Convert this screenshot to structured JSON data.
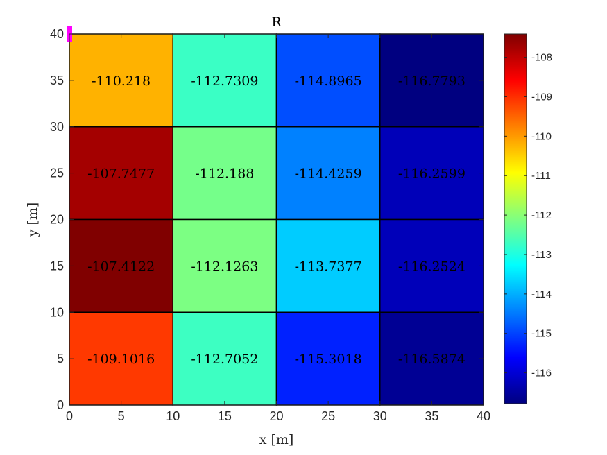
{
  "chart_data": {
    "type": "heatmap",
    "title": "R",
    "xlabel": "x [m]",
    "ylabel": "y [m]",
    "xlim": [
      0,
      40
    ],
    "ylim": [
      0,
      40
    ],
    "xticks": [
      0,
      5,
      10,
      15,
      20,
      25,
      30,
      35,
      40
    ],
    "yticks": [
      0,
      5,
      10,
      15,
      20,
      25,
      30,
      35,
      40
    ],
    "x_edges": [
      0,
      10,
      20,
      30,
      40
    ],
    "y_edges": [
      0,
      10,
      20,
      30,
      40
    ],
    "colormap": "jet",
    "clim": [
      -116.78,
      -107.41
    ],
    "colorbar_ticks": [
      -108,
      -109,
      -110,
      -111,
      -112,
      -113,
      -114,
      -115,
      -116
    ],
    "cells": [
      {
        "x": [
          0,
          10
        ],
        "y": [
          30,
          40
        ],
        "value": -110.218,
        "label": "-110.218"
      },
      {
        "x": [
          10,
          20
        ],
        "y": [
          30,
          40
        ],
        "value": -112.7309,
        "label": "-112.7309"
      },
      {
        "x": [
          20,
          30
        ],
        "y": [
          30,
          40
        ],
        "value": -114.8965,
        "label": "-114.8965"
      },
      {
        "x": [
          30,
          40
        ],
        "y": [
          30,
          40
        ],
        "value": -116.7793,
        "label": "-116.7793"
      },
      {
        "x": [
          0,
          10
        ],
        "y": [
          20,
          30
        ],
        "value": -107.7477,
        "label": "-107.7477"
      },
      {
        "x": [
          10,
          20
        ],
        "y": [
          20,
          30
        ],
        "value": -112.188,
        "label": "-112.188"
      },
      {
        "x": [
          20,
          30
        ],
        "y": [
          20,
          30
        ],
        "value": -114.4259,
        "label": "-114.4259"
      },
      {
        "x": [
          30,
          40
        ],
        "y": [
          20,
          30
        ],
        "value": -116.2599,
        "label": "-116.2599"
      },
      {
        "x": [
          0,
          10
        ],
        "y": [
          10,
          20
        ],
        "value": -107.4122,
        "label": "-107.4122"
      },
      {
        "x": [
          10,
          20
        ],
        "y": [
          10,
          20
        ],
        "value": -112.1263,
        "label": "-112.1263"
      },
      {
        "x": [
          20,
          30
        ],
        "y": [
          10,
          20
        ],
        "value": -113.7377,
        "label": "-113.7377"
      },
      {
        "x": [
          30,
          40
        ],
        "y": [
          10,
          20
        ],
        "value": -116.2524,
        "label": "-116.2524"
      },
      {
        "x": [
          0,
          10
        ],
        "y": [
          0,
          10
        ],
        "value": -109.1016,
        "label": "-109.1016"
      },
      {
        "x": [
          10,
          20
        ],
        "y": [
          0,
          10
        ],
        "value": -112.7052,
        "label": "-112.7052"
      },
      {
        "x": [
          20,
          30
        ],
        "y": [
          0,
          10
        ],
        "value": -115.3018,
        "label": "-115.3018"
      },
      {
        "x": [
          30,
          40
        ],
        "y": [
          0,
          10
        ],
        "value": -116.5874,
        "label": "-116.5874"
      }
    ],
    "marker": {
      "x": 0,
      "y": 40,
      "color": "#ff00ff"
    }
  }
}
